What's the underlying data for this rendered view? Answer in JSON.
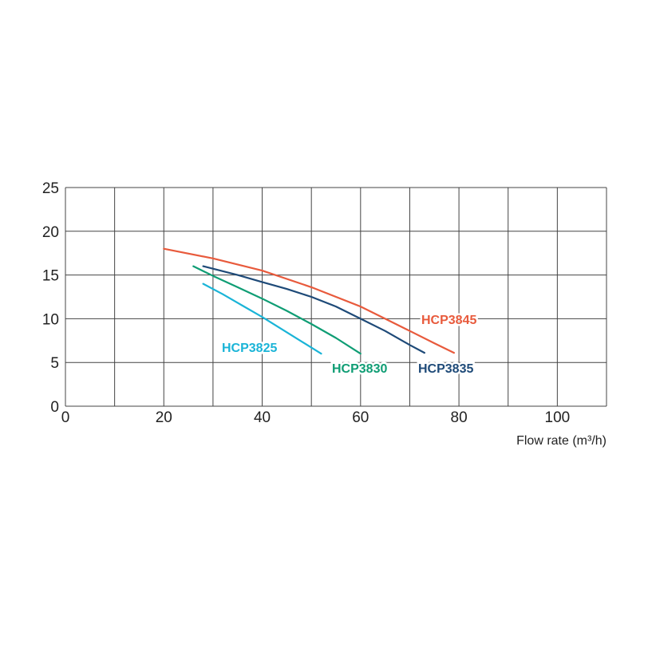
{
  "chart_data": {
    "type": "line",
    "title": "",
    "xlabel": "Flow rate (m³/h)",
    "ylabel": "",
    "xlim": [
      0,
      110
    ],
    "ylim": [
      0,
      25
    ],
    "x_ticks": [
      0,
      10,
      20,
      30,
      40,
      50,
      60,
      70,
      80,
      90,
      100,
      110
    ],
    "x_tick_labels": [
      "0",
      "",
      "20",
      "",
      "40",
      "",
      "60",
      "",
      "80",
      "",
      "100",
      ""
    ],
    "y_ticks": [
      0,
      5,
      10,
      15,
      20,
      25
    ],
    "y_tick_labels": [
      "0",
      "5",
      "10",
      "15",
      "20",
      "25"
    ],
    "grid": true,
    "legend": "inline labels",
    "series": [
      {
        "name": "HCP3825",
        "color": "#1ab4d7",
        "x": [
          28,
          32,
          36,
          40,
          44,
          48,
          52
        ],
        "y": [
          14.0,
          12.8,
          11.5,
          10.2,
          8.8,
          7.4,
          6.0
        ]
      },
      {
        "name": "HCP3830",
        "color": "#0f9d74",
        "x": [
          26,
          30,
          35,
          40,
          45,
          50,
          55,
          60
        ],
        "y": [
          16.0,
          14.9,
          13.6,
          12.3,
          10.9,
          9.4,
          7.8,
          6.0
        ]
      },
      {
        "name": "HCP3835",
        "color": "#1e4a78",
        "x": [
          28,
          35,
          40,
          45,
          50,
          55,
          60,
          65,
          70,
          73
        ],
        "y": [
          16.0,
          15.0,
          14.2,
          13.4,
          12.5,
          11.4,
          10.0,
          8.6,
          7.0,
          6.1
        ]
      },
      {
        "name": "HCP3845",
        "color": "#e85a3c",
        "x": [
          20,
          30,
          40,
          50,
          60,
          65,
          70,
          75,
          79
        ],
        "y": [
          18.0,
          16.9,
          15.5,
          13.6,
          11.4,
          10.0,
          8.6,
          7.2,
          6.1
        ]
      }
    ]
  }
}
